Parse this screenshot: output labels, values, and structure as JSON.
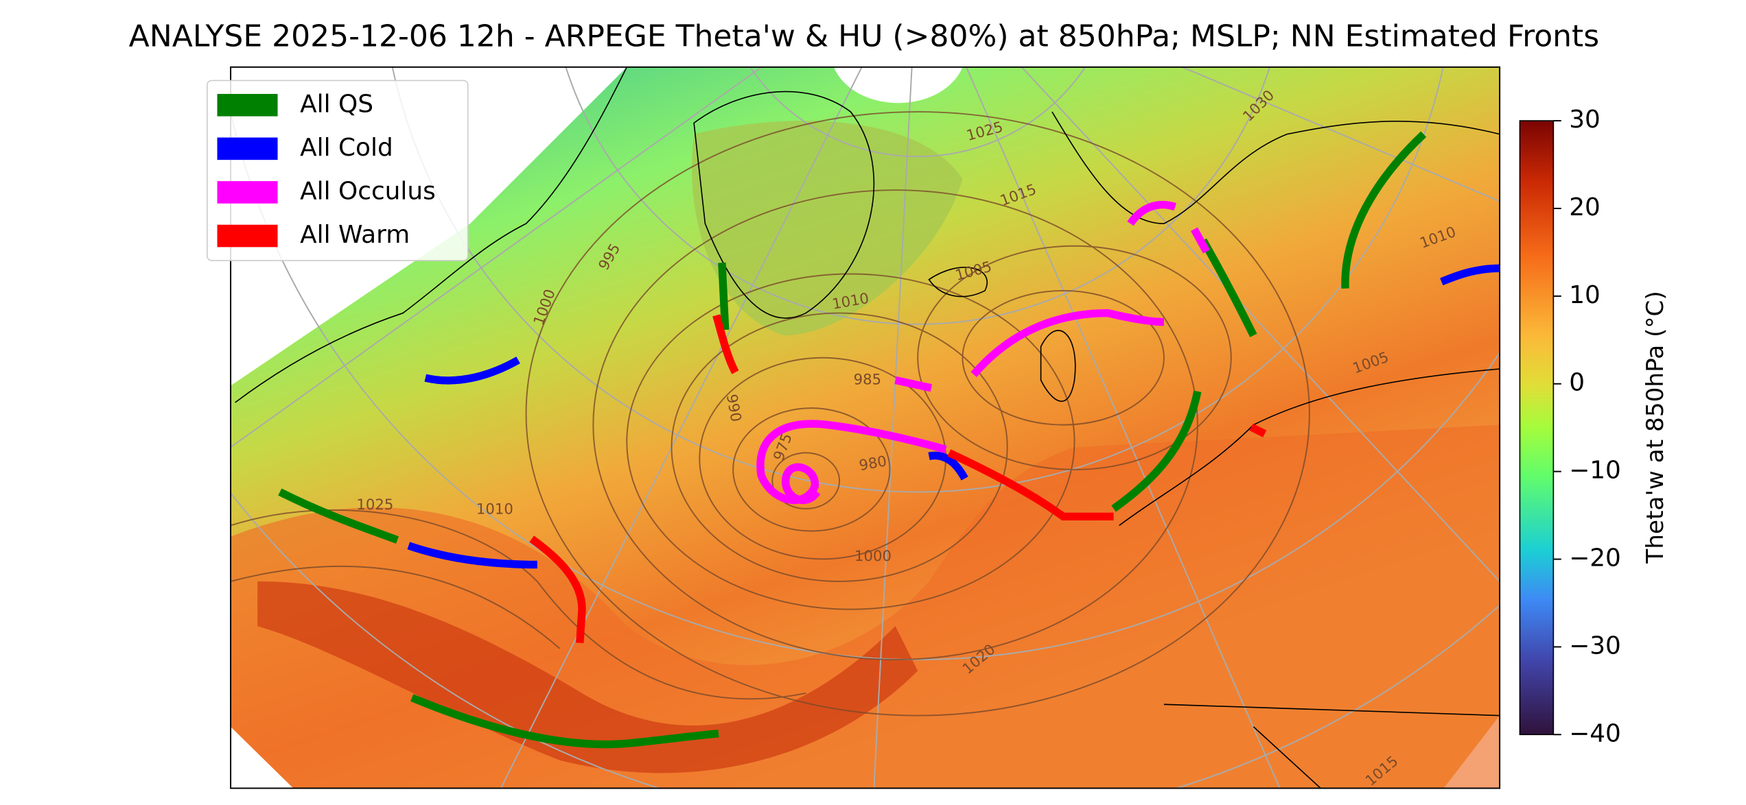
{
  "title": "ANALYSE 2025-12-06 12h - ARPEGE Theta'w & HU (>80%) at 850hPa; MSLP; NN Estimated Fronts",
  "legend": [
    {
      "name": "All QS",
      "color": "#008000"
    },
    {
      "name": "All Cold",
      "color": "#0000ff"
    },
    {
      "name": "All Occulus",
      "color": "#ff00ff"
    },
    {
      "name": "All Warm",
      "color": "#ff0000"
    }
  ],
  "colorbar": {
    "label": "Theta'w at 850hPa (°C)",
    "lim": [
      -40,
      30
    ],
    "ticks": [
      {
        "value": -40,
        "label": "−40"
      },
      {
        "value": -30,
        "label": "−30"
      },
      {
        "value": -20,
        "label": "−20"
      },
      {
        "value": -10,
        "label": "−10"
      },
      0,
      10,
      20,
      30
    ]
  },
  "contour_labels": [
    "985",
    "990",
    "975",
    "980",
    "1000",
    "1005",
    "1010",
    "1015",
    "1020",
    "1025",
    "1030",
    "995",
    "1000",
    "1010",
    "1025",
    "1010",
    "1005",
    "1015"
  ]
}
